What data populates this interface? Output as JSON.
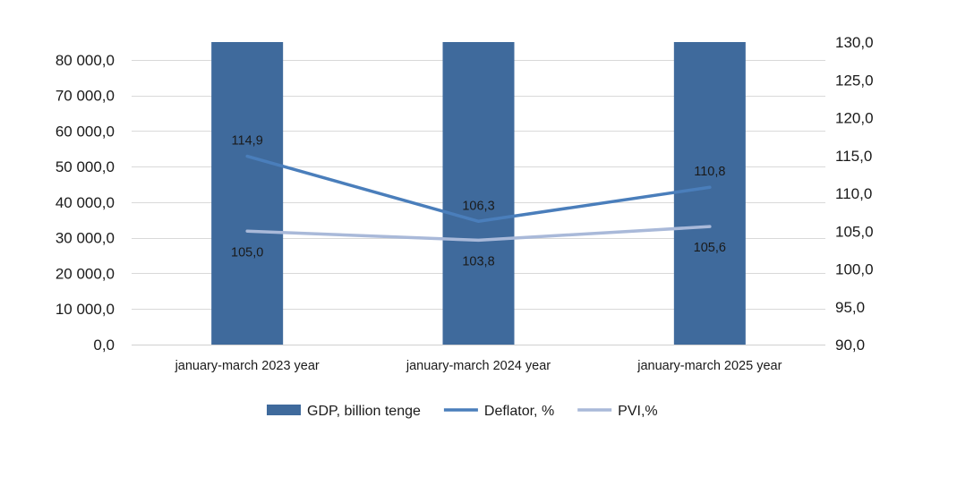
{
  "chart_data": {
    "type": "bar",
    "categories": [
      "january-march 2023 year",
      "january-march 2024 year",
      "january-march 2025 year"
    ],
    "series": [
      {
        "name": "GDP, billion tenge",
        "type": "bar",
        "axis": "left",
        "color": "#3F6A9C",
        "values": [
          85000,
          85000,
          85000
        ],
        "show_labels": false
      },
      {
        "name": "Deflator, %",
        "type": "line",
        "axis": "right",
        "color": "#4A7EBB",
        "values": [
          114.9,
          106.3,
          110.8
        ],
        "labels": [
          "114,9",
          "106,3",
          "110,8"
        ]
      },
      {
        "name": "PVI,%",
        "type": "line",
        "axis": "right",
        "color": "#A9B9D9",
        "values": [
          105.0,
          103.8,
          105.6
        ],
        "labels": [
          "105,0",
          "103,8",
          "105,6"
        ]
      }
    ],
    "y_left": {
      "ylim": [
        0,
        85000
      ],
      "ticks": [
        0,
        10000,
        20000,
        30000,
        40000,
        50000,
        60000,
        70000,
        80000
      ],
      "tick_labels": [
        "0,0",
        "10 000,0",
        "20 000,0",
        "30 000,0",
        "40 000,0",
        "50 000,0",
        "60 000,0",
        "70 000,0",
        "80 000,0"
      ]
    },
    "y_right": {
      "ylim": [
        90,
        130
      ],
      "ticks": [
        90,
        95,
        100,
        105,
        110,
        115,
        120,
        125,
        130
      ],
      "tick_labels": [
        "90,0",
        "95,0",
        "100,0",
        "105,0",
        "110,0",
        "115,0",
        "120,0",
        "125,0",
        "130,0"
      ]
    },
    "grid": true,
    "legend_position": "bottom"
  }
}
